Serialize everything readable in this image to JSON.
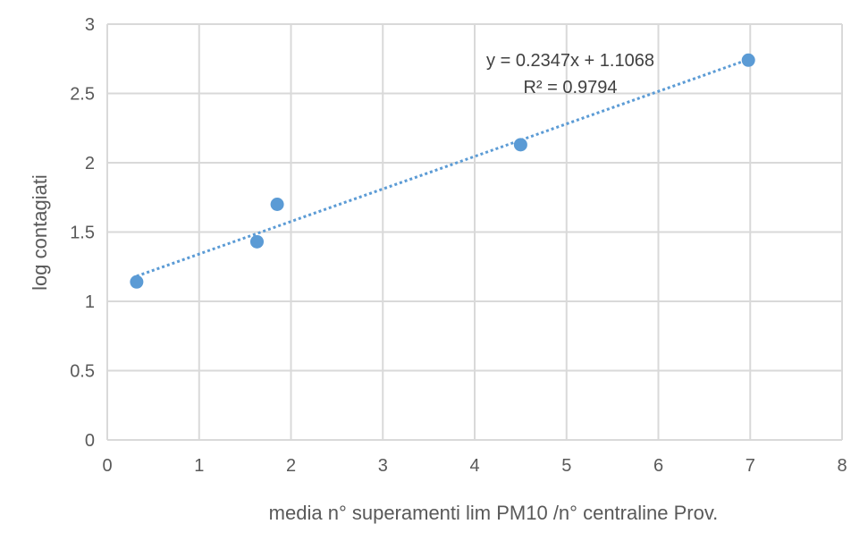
{
  "chart_data": {
    "type": "scatter",
    "title": "",
    "xlabel": "media n° superamenti lim PM10 /n° centraline Prov.",
    "ylabel": "log contagiati",
    "xlim": [
      0,
      8
    ],
    "ylim": [
      0,
      3
    ],
    "xticks": [
      0,
      1,
      2,
      3,
      4,
      5,
      6,
      7,
      8
    ],
    "yticks": [
      0,
      0.5,
      1,
      1.5,
      2,
      2.5,
      3
    ],
    "xtick_labels": [
      "0",
      "1",
      "2",
      "3",
      "4",
      "5",
      "6",
      "7",
      "8"
    ],
    "ytick_labels": [
      "0",
      "0.5",
      "1",
      "1.5",
      "2",
      "2.5",
      "3"
    ],
    "grid": true,
    "colors": {
      "points": "#5b9bd5",
      "trendline": "#5b9bd5",
      "grid": "#d9d9d9",
      "text": "#595959"
    },
    "series": [
      {
        "name": "log contagiati",
        "x": [
          0.32,
          1.63,
          1.85,
          4.5,
          6.98
        ],
        "y": [
          1.14,
          1.43,
          1.7,
          2.13,
          2.74
        ]
      }
    ],
    "trendline": {
      "type": "linear",
      "slope": 0.2347,
      "intercept": 1.1068,
      "x_range": [
        0.32,
        6.98
      ],
      "equation_label": "y = 0.2347x + 1.1068",
      "r2_label": "R² = 0.9794"
    }
  }
}
